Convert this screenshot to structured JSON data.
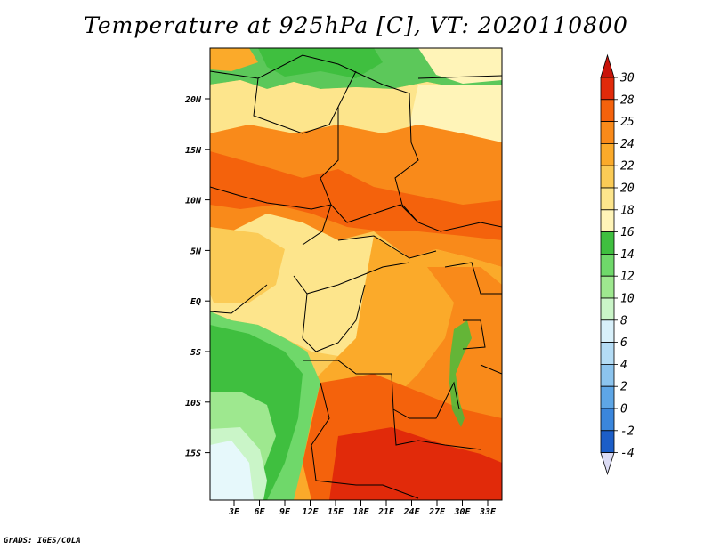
{
  "title": "Temperature at 925hPa [C], VT: 2020110800",
  "credit": "GrADS: IGES/COLA",
  "map": {
    "lat_labels": [
      "20N",
      "15N",
      "10N",
      "5N",
      "EQ",
      "5S",
      "10S",
      "15S"
    ],
    "lon_labels": [
      "3E",
      "6E",
      "9E",
      "12E",
      "15E",
      "18E",
      "21E",
      "24E",
      "27E",
      "30E",
      "33E"
    ]
  },
  "colorbar": {
    "levels": [
      "30",
      "28",
      "25",
      "24",
      "22",
      "20",
      "18",
      "16",
      "14",
      "12",
      "10",
      "8",
      "6",
      "4",
      "2",
      "0",
      "-2",
      "-4"
    ],
    "colors": [
      "#e12a0a",
      "#f4620c",
      "#f98a1a",
      "#fbaa2a",
      "#fbcb56",
      "#fde58c",
      "#fff4b8",
      "#3fbf3f",
      "#6fd86a",
      "#9ee88f",
      "#caf5c8",
      "#d8f0fa",
      "#b4dcf5",
      "#8cc4ee",
      "#5ea6e6",
      "#3a86dc",
      "#1c5ec8",
      "#0a3aa8",
      "#0a1a7a"
    ],
    "top_color": "#c8140a",
    "bottom_color": "#dcdcf5"
  }
}
